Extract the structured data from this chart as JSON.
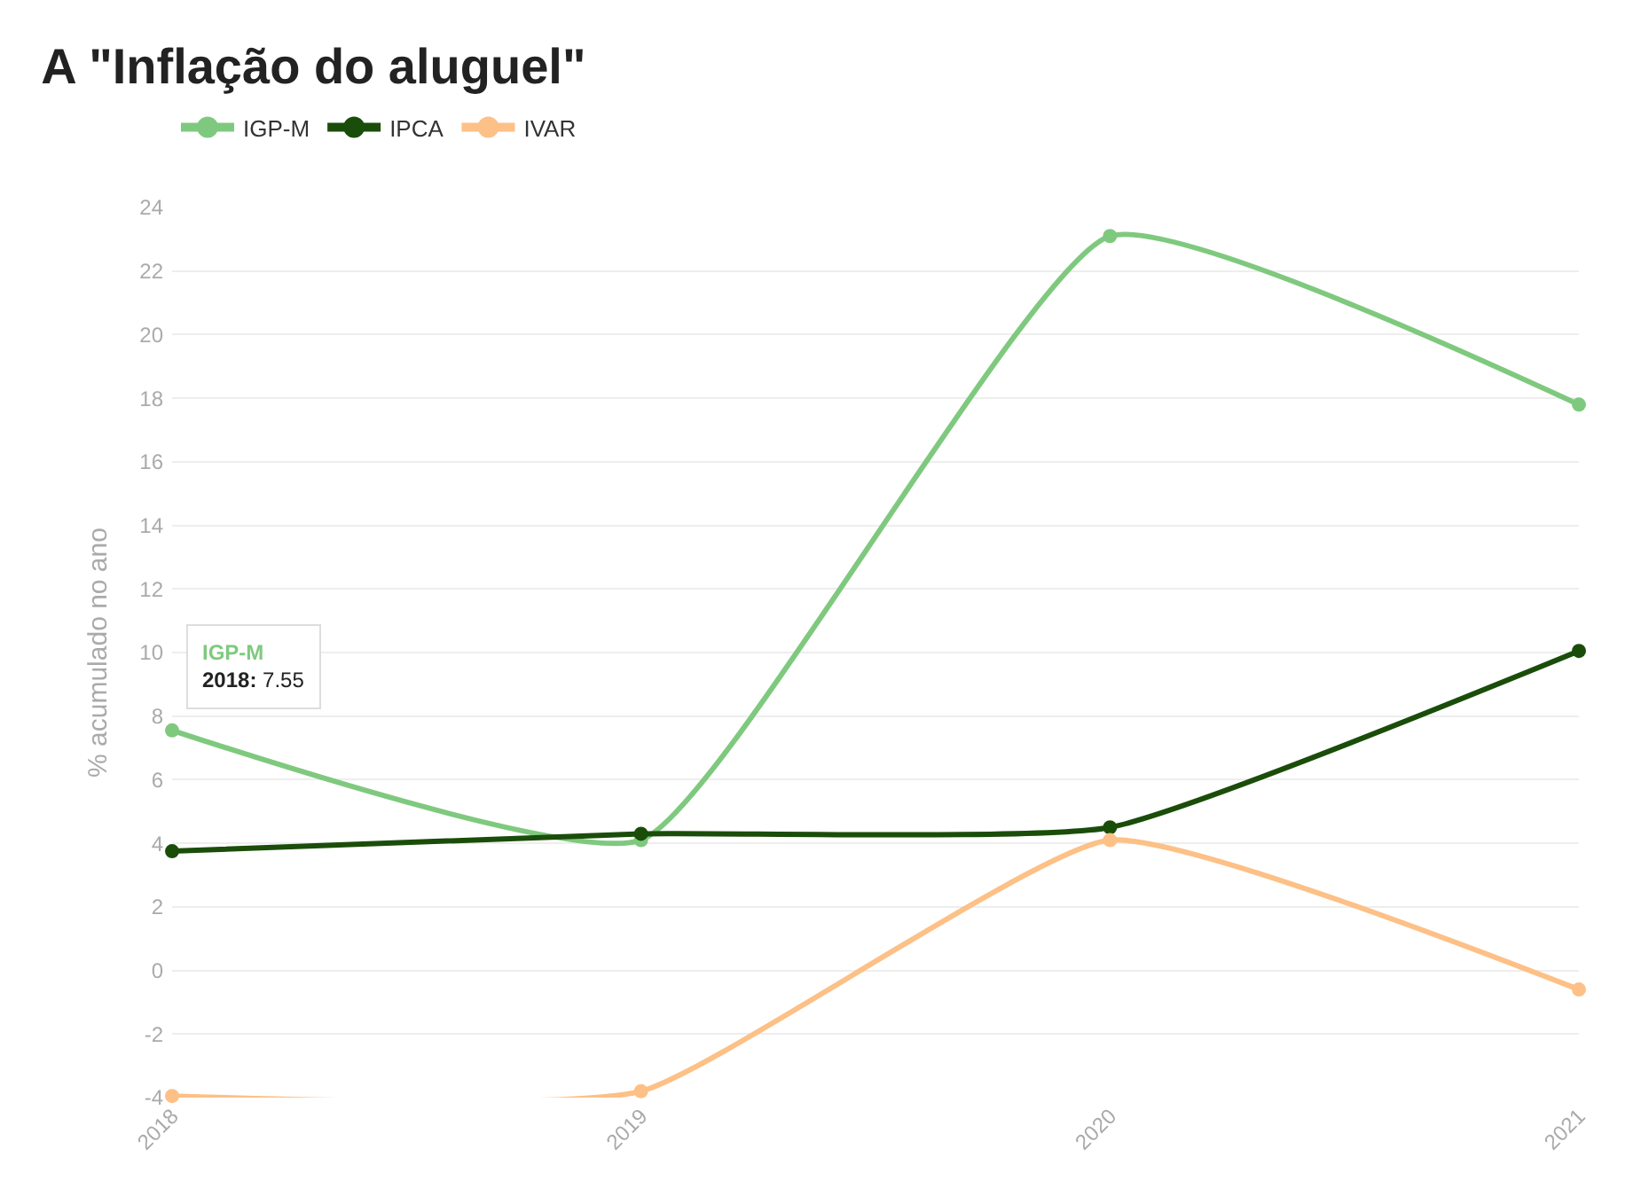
{
  "chart_data": {
    "type": "line",
    "title": "A \"Inflação do aluguel\"",
    "ylabel": "% acumulado no ano",
    "categories": [
      "2018",
      "2019",
      "2020",
      "2021"
    ],
    "series": [
      {
        "name": "IGP-M",
        "color": "#7fc97f",
        "values": [
          7.55,
          4.1,
          23.1,
          17.8
        ]
      },
      {
        "name": "IPCA",
        "color": "#1b4d0a",
        "values": [
          3.75,
          4.3,
          4.5,
          10.05
        ]
      },
      {
        "name": "IVAR",
        "color": "#fdc086",
        "values": [
          -3.95,
          -3.8,
          4.1,
          -0.6
        ]
      }
    ],
    "ylim": [
      -4,
      24
    ],
    "yticks": [
      -4,
      -2,
      0,
      2,
      4,
      6,
      8,
      10,
      12,
      14,
      16,
      18,
      20,
      22,
      24
    ],
    "grid": "y",
    "legend": "top left",
    "marker": "circle",
    "line_style": "solid",
    "annotations": [
      {
        "text": "IGP-M\n2018: 7.55",
        "x": "2018",
        "y": 7.55
      }
    ]
  }
}
